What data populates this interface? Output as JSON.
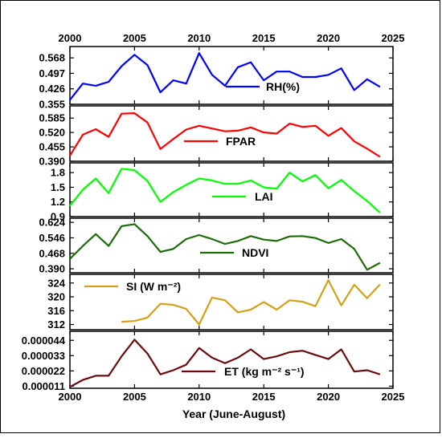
{
  "chart_data": {
    "type": "line",
    "title": "",
    "xlabel": "Year (June-August)",
    "x_range": [
      2000,
      2025
    ],
    "x_ticks": [
      2000,
      2005,
      2010,
      2015,
      2020,
      2025
    ],
    "x_tick_labels": [
      "2000",
      "2005",
      "2010",
      "2015",
      "2020",
      "2025"
    ],
    "legend_placement": "inside each panel",
    "panels": [
      {
        "name": "RH(%)",
        "color": "#0000FF",
        "ylim": [
          0.355,
          0.62
        ],
        "y_ticks": [
          0.355,
          0.426,
          0.497,
          0.568
        ],
        "y_tick_labels": [
          "0.355",
          "0.426",
          "0.497",
          "0.568"
        ],
        "x": [
          2000,
          2001,
          2002,
          2003,
          2004,
          2005,
          2006,
          2007,
          2008,
          2009,
          2010,
          2011,
          2012,
          2013,
          2014,
          2015,
          2016,
          2017,
          2018,
          2019,
          2020,
          2021,
          2022,
          2023,
          2024
        ],
        "values": [
          0.375,
          0.45,
          0.44,
          0.458,
          0.53,
          0.582,
          0.535,
          0.41,
          0.465,
          0.45,
          0.59,
          0.49,
          0.44,
          0.525,
          0.548,
          0.465,
          0.505,
          0.505,
          0.48,
          0.48,
          0.49,
          0.52,
          0.42,
          0.47,
          0.435
        ]
      },
      {
        "name": "FPAR",
        "color": "#FF0000",
        "ylim": [
          0.39,
          0.64
        ],
        "y_ticks": [
          0.39,
          0.455,
          0.52,
          0.585
        ],
        "y_tick_labels": [
          "0.390",
          "0.455",
          "0.520",
          "0.585"
        ],
        "x": [
          2000,
          2001,
          2002,
          2003,
          2004,
          2005,
          2006,
          2007,
          2008,
          2009,
          2010,
          2011,
          2012,
          2013,
          2014,
          2015,
          2016,
          2017,
          2018,
          2019,
          2020,
          2021,
          2022,
          2023,
          2024
        ],
        "values": [
          0.415,
          0.51,
          0.535,
          0.5,
          0.605,
          0.607,
          0.565,
          0.445,
          0.49,
          0.533,
          0.55,
          0.538,
          0.525,
          0.528,
          0.543,
          0.52,
          0.515,
          0.56,
          0.545,
          0.55,
          0.505,
          0.54,
          0.48,
          0.447,
          0.41
        ]
      },
      {
        "name": "LAI",
        "color": "#00FF00",
        "ylim": [
          0.9,
          2.0
        ],
        "y_ticks": [
          0.9,
          1.2,
          1.5,
          1.8
        ],
        "y_tick_labels": [
          "0.9",
          "1.2",
          "1.5",
          "1.8"
        ],
        "x": [
          2000,
          2001,
          2002,
          2003,
          2004,
          2005,
          2006,
          2007,
          2008,
          2009,
          2010,
          2011,
          2012,
          2013,
          2014,
          2015,
          2016,
          2017,
          2018,
          2019,
          2020,
          2021,
          2022,
          2023,
          2024
        ],
        "values": [
          1.12,
          1.45,
          1.68,
          1.38,
          1.88,
          1.85,
          1.63,
          1.2,
          1.4,
          1.55,
          1.68,
          1.64,
          1.57,
          1.57,
          1.64,
          1.5,
          1.47,
          1.8,
          1.62,
          1.75,
          1.48,
          1.65,
          1.42,
          1.22,
          0.98
        ]
      },
      {
        "name": "NDVI",
        "color": "#1E6B0A",
        "ylim": [
          0.37,
          0.645
        ],
        "y_ticks": [
          0.39,
          0.468,
          0.546,
          0.624
        ],
        "y_tick_labels": [
          "0.390",
          "0.468",
          "0.546",
          "0.624"
        ],
        "x": [
          2000,
          2001,
          2002,
          2003,
          2004,
          2005,
          2006,
          2007,
          2008,
          2009,
          2010,
          2011,
          2012,
          2013,
          2014,
          2015,
          2016,
          2017,
          2018,
          2019,
          2020,
          2021,
          2022,
          2023,
          2024
        ],
        "values": [
          0.44,
          0.505,
          0.565,
          0.505,
          0.605,
          0.615,
          0.555,
          0.475,
          0.49,
          0.54,
          0.56,
          0.54,
          0.515,
          0.53,
          0.555,
          0.537,
          0.53,
          0.553,
          0.555,
          0.545,
          0.52,
          0.54,
          0.49,
          0.385,
          0.42
        ]
      },
      {
        "name": "SI (W m⁻²)",
        "color": "#D4A017",
        "ylim": [
          310.5,
          326.5
        ],
        "y_ticks": [
          312,
          316,
          320,
          324
        ],
        "y_tick_labels": [
          "312",
          "316",
          "320",
          "324"
        ],
        "x": [
          2004,
          2005,
          2006,
          2007,
          2008,
          2009,
          2010,
          2011,
          2012,
          2013,
          2014,
          2015,
          2016,
          2017,
          2018,
          2019,
          2020,
          2021,
          2022,
          2023,
          2024
        ],
        "values": [
          312.8,
          313.0,
          314.0,
          318.0,
          317.7,
          316.5,
          312.0,
          319.8,
          319.0,
          315.5,
          316.3,
          318.5,
          316.3,
          319.0,
          318.6,
          317.3,
          324.8,
          317.5,
          323.5,
          319.6,
          323.6
        ]
      },
      {
        "name": "ET (kg m⁻² s⁻¹)",
        "color": "#6B0A0A",
        "ylim": [
          9.5e-06,
          5.05e-05
        ],
        "y_ticks": [
          1.1e-05,
          2.2e-05,
          3.3e-05,
          4.4e-05
        ],
        "y_tick_labels": [
          "0.000011",
          "0.000022",
          "0.000033",
          "0.000044"
        ],
        "x": [
          2000,
          2001,
          2002,
          2003,
          2004,
          2005,
          2006,
          2007,
          2008,
          2009,
          2010,
          2011,
          2012,
          2013,
          2014,
          2015,
          2016,
          2017,
          2018,
          2019,
          2020,
          2021,
          2022,
          2023,
          2024
        ],
        "values": [
          1.05e-05,
          1.55e-05,
          1.85e-05,
          1.85e-05,
          3.25e-05,
          4.45e-05,
          3.45e-05,
          1.95e-05,
          2.25e-05,
          2.65e-05,
          3.85e-05,
          3.15e-05,
          2.75e-05,
          3.15e-05,
          3.75e-05,
          3.05e-05,
          3.25e-05,
          3.55e-05,
          3.65e-05,
          3.35e-05,
          3.05e-05,
          3.75e-05,
          2.15e-05,
          2.25e-05,
          1.95e-05
        ]
      }
    ]
  }
}
